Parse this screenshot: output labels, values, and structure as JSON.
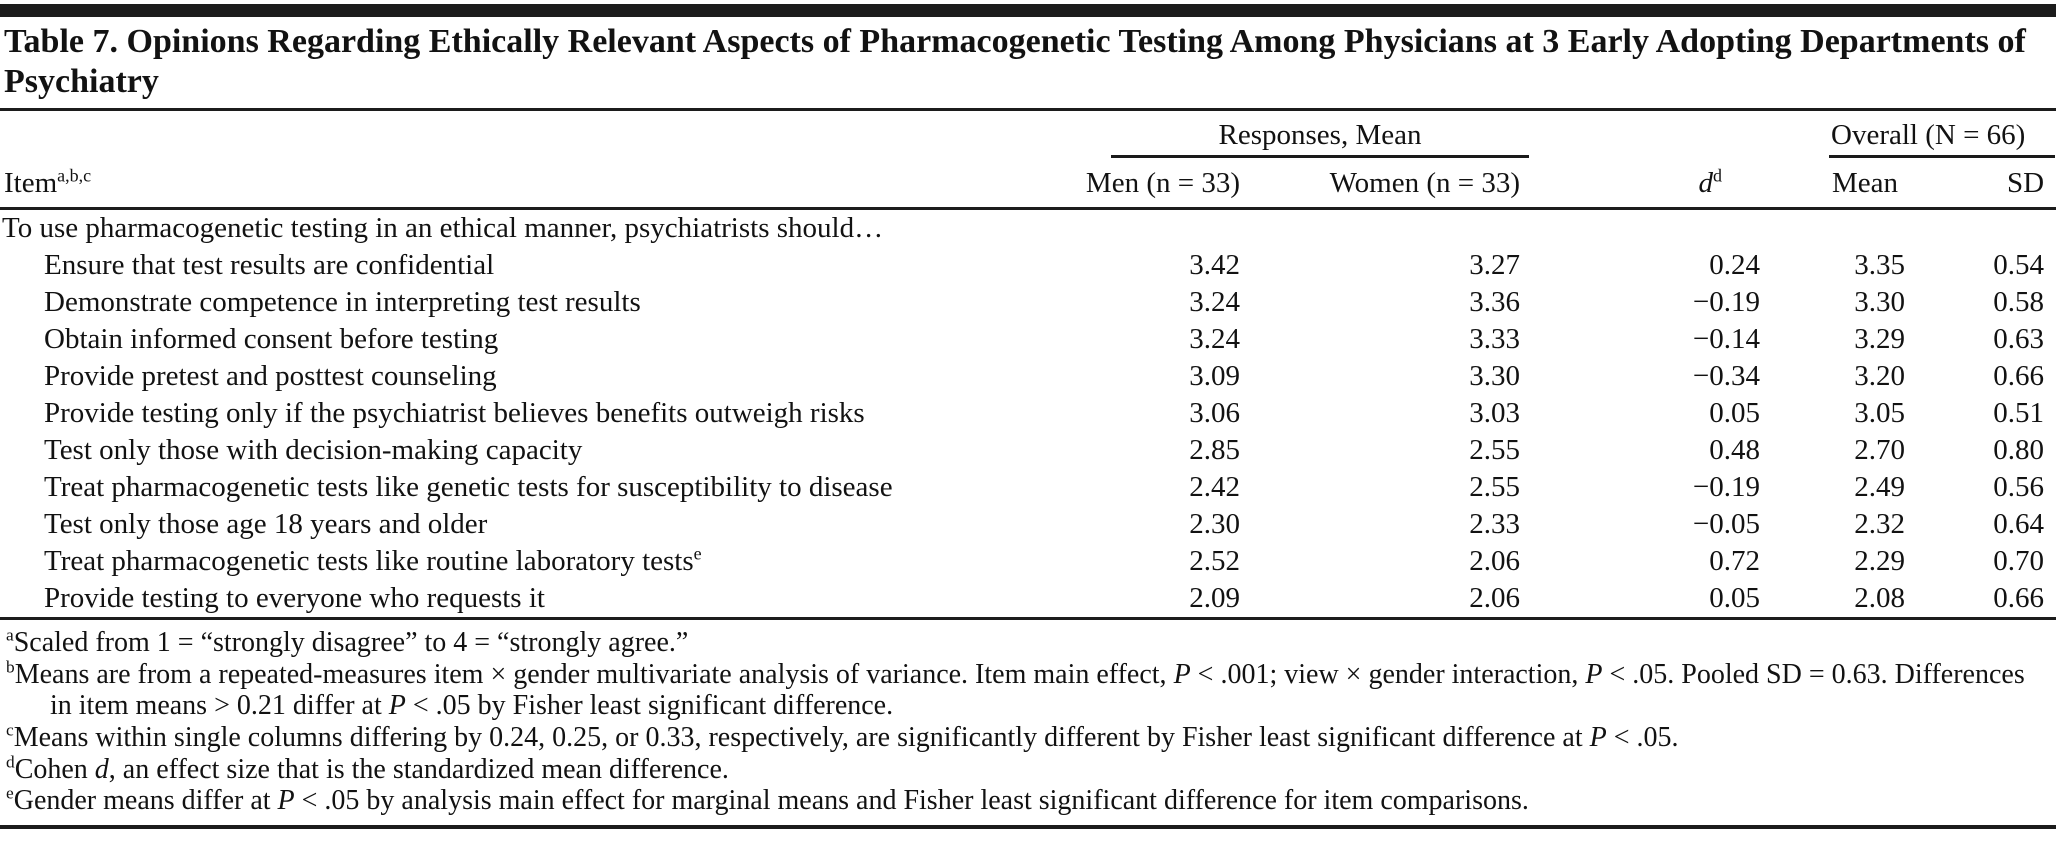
{
  "title": "Table 7. Opinions Regarding Ethically Relevant Aspects of Pharmacogenetic Testing Among Physicians at 3 Early Adopting Departments of Psychiatry",
  "table": {
    "item_header": "Item",
    "item_header_sup": "a,b,c",
    "spanners": {
      "responses": "Responses, Mean",
      "overall": "Overall (N = 66)"
    },
    "columns": {
      "men": "Men (n = 33)",
      "women": "Women (n = 33)",
      "d": "d",
      "d_sup": "d",
      "mean": "Mean",
      "sd": "SD"
    },
    "stem": "To use pharmacogenetic testing in an ethical manner, psychiatrists should…",
    "rows": [
      {
        "item": "Ensure that test results are confidential",
        "sup": "",
        "men": "3.42",
        "women": "3.27",
        "d": "0.24",
        "mean": "3.35",
        "sd": "0.54"
      },
      {
        "item": "Demonstrate competence in interpreting test results",
        "sup": "",
        "men": "3.24",
        "women": "3.36",
        "d": "−0.19",
        "mean": "3.30",
        "sd": "0.58"
      },
      {
        "item": "Obtain informed consent before testing",
        "sup": "",
        "men": "3.24",
        "women": "3.33",
        "d": "−0.14",
        "mean": "3.29",
        "sd": "0.63"
      },
      {
        "item": "Provide pretest and posttest counseling",
        "sup": "",
        "men": "3.09",
        "women": "3.30",
        "d": "−0.34",
        "mean": "3.20",
        "sd": "0.66"
      },
      {
        "item": "Provide testing only if the psychiatrist believes benefits outweigh risks",
        "sup": "",
        "men": "3.06",
        "women": "3.03",
        "d": "0.05",
        "mean": "3.05",
        "sd": "0.51"
      },
      {
        "item": "Test only those with decision-making capacity",
        "sup": "",
        "men": "2.85",
        "women": "2.55",
        "d": "0.48",
        "mean": "2.70",
        "sd": "0.80"
      },
      {
        "item": "Treat pharmacogenetic tests like genetic tests for susceptibility to disease",
        "sup": "",
        "men": "2.42",
        "women": "2.55",
        "d": "−0.19",
        "mean": "2.49",
        "sd": "0.56"
      },
      {
        "item": "Test only those age 18 years and older",
        "sup": "",
        "men": "2.30",
        "women": "2.33",
        "d": "−0.05",
        "mean": "2.32",
        "sd": "0.64"
      },
      {
        "item": "Treat pharmacogenetic tests like routine laboratory tests",
        "sup": "e",
        "men": "2.52",
        "women": "2.06",
        "d": "0.72",
        "mean": "2.29",
        "sd": "0.70"
      },
      {
        "item": "Provide testing to everyone who requests it",
        "sup": "",
        "men": "2.09",
        "women": "2.06",
        "d": "0.05",
        "mean": "2.08",
        "sd": "0.66"
      }
    ]
  },
  "footnotes": [
    {
      "sup": "a",
      "parts": [
        {
          "t": "Scaled from 1 = “strongly disagree” to 4 = “strongly agree.”"
        }
      ]
    },
    {
      "sup": "b",
      "parts": [
        {
          "t": "Means are from a repeated-measures item × gender multivariate analysis of variance. Item main effect, "
        },
        {
          "t": "P",
          "i": true
        },
        {
          "t": " < .001; view × gender interaction, "
        },
        {
          "t": "P",
          "i": true
        },
        {
          "t": " < .05. Pooled SD = 0.63. Differences in item means > 0.21 differ at "
        },
        {
          "t": "P",
          "i": true
        },
        {
          "t": " < .05 by Fisher least significant difference."
        }
      ]
    },
    {
      "sup": "c",
      "parts": [
        {
          "t": "Means within single columns differing by 0.24, 0.25, or 0.33, respectively, are significantly different by Fisher least significant difference at "
        },
        {
          "t": "P",
          "i": true
        },
        {
          "t": " < .05."
        }
      ]
    },
    {
      "sup": "d",
      "parts": [
        {
          "t": "Cohen "
        },
        {
          "t": "d",
          "i": true
        },
        {
          "t": ", an effect size that is the standardized mean difference."
        }
      ]
    },
    {
      "sup": "e",
      "parts": [
        {
          "t": "Gender means differ at "
        },
        {
          "t": "P",
          "i": true
        },
        {
          "t": " < .05 by analysis main effect for marginal means and Fisher least significant difference for item comparisons."
        }
      ]
    }
  ]
}
